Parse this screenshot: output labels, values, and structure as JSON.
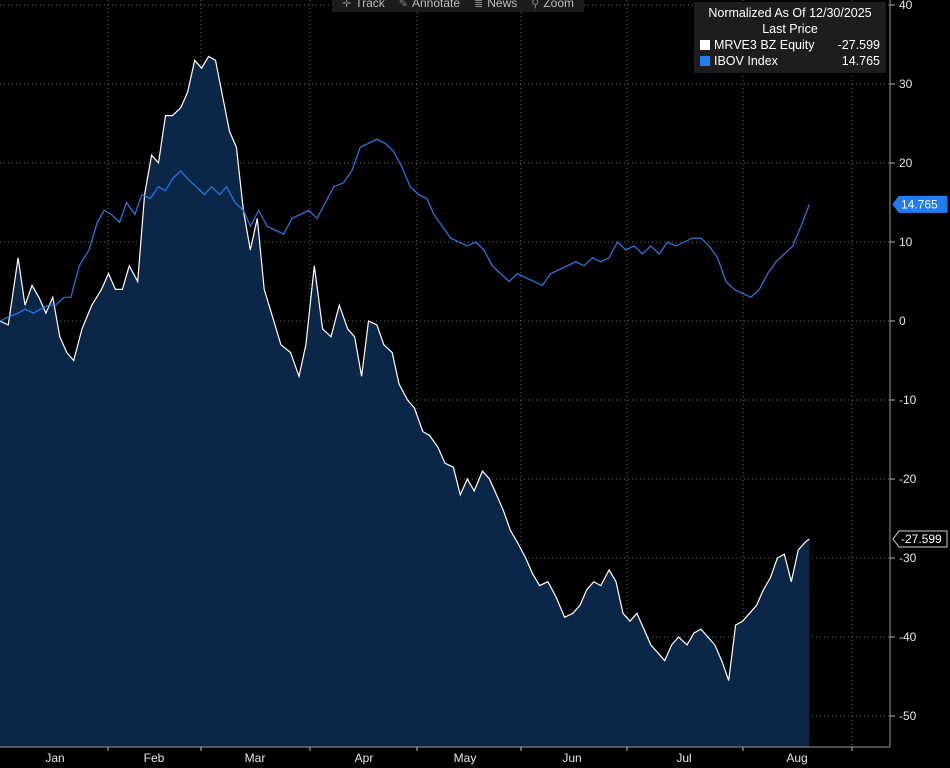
{
  "toolbar": {
    "items": [
      {
        "label": "Track",
        "icon": "crosshair-icon"
      },
      {
        "label": "Annotate",
        "icon": "pencil-icon"
      },
      {
        "label": "News",
        "icon": "news-icon"
      },
      {
        "label": "Zoom",
        "icon": "magnifier-icon"
      }
    ]
  },
  "legend": {
    "title": "Normalized As Of 12/30/2025",
    "subtitle": "Last Price",
    "entries": [
      {
        "name": "MRVE3 BZ Equity",
        "value": "-27.599",
        "color": "#ffffff"
      },
      {
        "name": "IBOV Index",
        "value": "14.765",
        "color": "#1f7df0"
      }
    ]
  },
  "chart_data": {
    "type": "line",
    "x_labels": [
      "Jan",
      "Feb",
      "Mar",
      "Apr",
      "May",
      "Jun",
      "Jul",
      "Aug"
    ],
    "ylim": [
      -54,
      40
    ],
    "y_ticks": [
      40,
      30,
      20,
      10,
      0,
      -10,
      -20,
      -30,
      -40,
      -50
    ],
    "grid": true,
    "legend_position": "top-right",
    "series": [
      {
        "name": "MRVE3 BZ Equity",
        "color": "#ffffff",
        "fill": "#0c2648",
        "last_label": "-27.599",
        "points": [
          [
            0.0,
            0
          ],
          [
            0.6,
            -0.5
          ],
          [
            1.3,
            8
          ],
          [
            1.8,
            2
          ],
          [
            2.3,
            4.5
          ],
          [
            2.8,
            3
          ],
          [
            3.3,
            1
          ],
          [
            3.8,
            3
          ],
          [
            4.3,
            -2
          ],
          [
            4.8,
            -4
          ],
          [
            5.3,
            -5
          ],
          [
            5.9,
            -1
          ],
          [
            6.6,
            2
          ],
          [
            7.3,
            4
          ],
          [
            7.8,
            6
          ],
          [
            8.3,
            4
          ],
          [
            8.8,
            4
          ],
          [
            9.3,
            7
          ],
          [
            9.9,
            5
          ],
          [
            10.4,
            16
          ],
          [
            10.9,
            21
          ],
          [
            11.4,
            20
          ],
          [
            11.9,
            26
          ],
          [
            12.4,
            26
          ],
          [
            13.0,
            27
          ],
          [
            13.5,
            29
          ],
          [
            14.0,
            33
          ],
          [
            14.5,
            32
          ],
          [
            15.0,
            33.5
          ],
          [
            15.5,
            33
          ],
          [
            16.0,
            28.5
          ],
          [
            16.5,
            24
          ],
          [
            17.0,
            22
          ],
          [
            17.5,
            14
          ],
          [
            18.0,
            9
          ],
          [
            18.5,
            13
          ],
          [
            19.0,
            4
          ],
          [
            19.6,
            0.5
          ],
          [
            20.2,
            -3
          ],
          [
            20.9,
            -4
          ],
          [
            21.5,
            -7
          ],
          [
            22.0,
            -3
          ],
          [
            22.6,
            7
          ],
          [
            23.2,
            -1
          ],
          [
            23.8,
            -2
          ],
          [
            24.4,
            2
          ],
          [
            25.0,
            -1
          ],
          [
            25.5,
            -2
          ],
          [
            26.0,
            -7
          ],
          [
            26.5,
            0
          ],
          [
            27.1,
            -0.5
          ],
          [
            27.6,
            -3
          ],
          [
            28.2,
            -4
          ],
          [
            28.7,
            -8
          ],
          [
            29.3,
            -10
          ],
          [
            29.8,
            -11
          ],
          [
            30.4,
            -14
          ],
          [
            30.9,
            -14.5
          ],
          [
            31.5,
            -16
          ],
          [
            32.0,
            -18
          ],
          [
            32.6,
            -18.5
          ],
          [
            33.1,
            -22
          ],
          [
            33.6,
            -20
          ],
          [
            34.1,
            -21.5
          ],
          [
            34.7,
            -19
          ],
          [
            35.2,
            -20
          ],
          [
            35.7,
            -22
          ],
          [
            36.2,
            -24
          ],
          [
            36.7,
            -26.5
          ],
          [
            37.2,
            -28
          ],
          [
            37.8,
            -30
          ],
          [
            38.3,
            -32
          ],
          [
            38.8,
            -33.5
          ],
          [
            39.4,
            -33
          ],
          [
            40.0,
            -35
          ],
          [
            40.6,
            -37.5
          ],
          [
            41.2,
            -37
          ],
          [
            41.7,
            -36
          ],
          [
            42.2,
            -34
          ],
          [
            42.7,
            -33
          ],
          [
            43.2,
            -33.5
          ],
          [
            43.8,
            -31.5
          ],
          [
            44.3,
            -33
          ],
          [
            44.8,
            -37
          ],
          [
            45.3,
            -38
          ],
          [
            45.8,
            -37
          ],
          [
            46.3,
            -39
          ],
          [
            46.8,
            -41
          ],
          [
            47.3,
            -42
          ],
          [
            47.8,
            -43
          ],
          [
            48.3,
            -41
          ],
          [
            48.8,
            -40
          ],
          [
            49.4,
            -41
          ],
          [
            49.9,
            -39.5
          ],
          [
            50.4,
            -39
          ],
          [
            50.9,
            -40
          ],
          [
            51.4,
            -41
          ],
          [
            51.9,
            -43
          ],
          [
            52.4,
            -45.5
          ],
          [
            52.9,
            -38.5
          ],
          [
            53.4,
            -38
          ],
          [
            53.9,
            -37
          ],
          [
            54.4,
            -36
          ],
          [
            54.9,
            -34
          ],
          [
            55.4,
            -32.5
          ],
          [
            55.9,
            -30
          ],
          [
            56.4,
            -29.5
          ],
          [
            56.9,
            -33
          ],
          [
            57.4,
            -29
          ],
          [
            57.9,
            -28
          ],
          [
            58.2,
            -27.6
          ]
        ]
      },
      {
        "name": "IBOV Index",
        "color": "#1f7df0",
        "last_label": "14.765",
        "points": [
          [
            0.0,
            0
          ],
          [
            0.6,
            0.5
          ],
          [
            1.3,
            1
          ],
          [
            1.8,
            1.5
          ],
          [
            2.4,
            1
          ],
          [
            2.9,
            1.5
          ],
          [
            3.5,
            2
          ],
          [
            4.0,
            2
          ],
          [
            4.6,
            3
          ],
          [
            5.1,
            3
          ],
          [
            5.7,
            7
          ],
          [
            6.4,
            9
          ],
          [
            7.0,
            12.5
          ],
          [
            7.5,
            14
          ],
          [
            8.0,
            13.5
          ],
          [
            8.6,
            12.5
          ],
          [
            9.1,
            15
          ],
          [
            9.7,
            13.5
          ],
          [
            10.2,
            16
          ],
          [
            10.8,
            15.5
          ],
          [
            11.4,
            17
          ],
          [
            11.9,
            16.5
          ],
          [
            12.4,
            18
          ],
          [
            13.0,
            19
          ],
          [
            13.5,
            18
          ],
          [
            14.1,
            17
          ],
          [
            14.7,
            16
          ],
          [
            15.2,
            17
          ],
          [
            15.8,
            16
          ],
          [
            16.3,
            17
          ],
          [
            16.9,
            15
          ],
          [
            17.5,
            14
          ],
          [
            18.0,
            12
          ],
          [
            18.6,
            14
          ],
          [
            19.2,
            12
          ],
          [
            19.8,
            11.5
          ],
          [
            20.4,
            11
          ],
          [
            21.0,
            13
          ],
          [
            21.6,
            13.5
          ],
          [
            22.2,
            14
          ],
          [
            22.8,
            13
          ],
          [
            23.4,
            15
          ],
          [
            24.0,
            17
          ],
          [
            24.7,
            17.5
          ],
          [
            25.3,
            19
          ],
          [
            25.9,
            22
          ],
          [
            26.5,
            22.5
          ],
          [
            27.1,
            23
          ],
          [
            27.7,
            22.5
          ],
          [
            28.3,
            21.5
          ],
          [
            28.9,
            19.5
          ],
          [
            29.5,
            17
          ],
          [
            30.1,
            16
          ],
          [
            30.7,
            15.5
          ],
          [
            31.2,
            13.5
          ],
          [
            31.8,
            12
          ],
          [
            32.4,
            10.5
          ],
          [
            33.0,
            10
          ],
          [
            33.6,
            9.5
          ],
          [
            34.2,
            10
          ],
          [
            34.8,
            9
          ],
          [
            35.4,
            7
          ],
          [
            36.0,
            6
          ],
          [
            36.6,
            5
          ],
          [
            37.2,
            6
          ],
          [
            37.8,
            5.5
          ],
          [
            38.4,
            5
          ],
          [
            39.0,
            4.5
          ],
          [
            39.6,
            6
          ],
          [
            40.2,
            6.5
          ],
          [
            40.8,
            7
          ],
          [
            41.4,
            7.5
          ],
          [
            42.0,
            7
          ],
          [
            42.6,
            8
          ],
          [
            43.2,
            7.5
          ],
          [
            43.8,
            8
          ],
          [
            44.4,
            10
          ],
          [
            45.0,
            9
          ],
          [
            45.6,
            9.5
          ],
          [
            46.2,
            8.5
          ],
          [
            46.8,
            9.5
          ],
          [
            47.4,
            8.5
          ],
          [
            48.0,
            10
          ],
          [
            48.6,
            9.5
          ],
          [
            49.2,
            10
          ],
          [
            49.8,
            10.5
          ],
          [
            50.4,
            10.5
          ],
          [
            51.0,
            9.5
          ],
          [
            51.6,
            8
          ],
          [
            52.2,
            5
          ],
          [
            52.8,
            4
          ],
          [
            53.4,
            3.5
          ],
          [
            54.0,
            3
          ],
          [
            54.6,
            4
          ],
          [
            55.2,
            6
          ],
          [
            55.8,
            7.5
          ],
          [
            56.4,
            8.5
          ],
          [
            57.0,
            9.5
          ],
          [
            57.6,
            12
          ],
          [
            58.2,
            14.765
          ]
        ]
      }
    ]
  }
}
